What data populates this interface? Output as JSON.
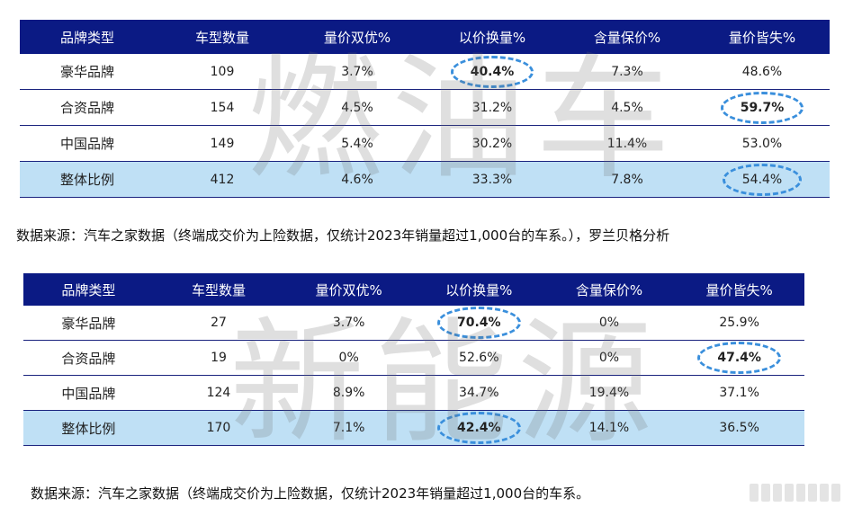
{
  "headers": [
    "品牌类型",
    "车型数量",
    "量价双优%",
    "以价换量%",
    "含量保价%",
    "量价皆失%"
  ],
  "ice": {
    "watermark": "燃油车",
    "rows": [
      {
        "brand": "豪华品牌",
        "count": "109",
        "both_good": "3.7%",
        "price_for_volume": "40.4%",
        "volume_hold": "7.3%",
        "both_loss": "48.6%"
      },
      {
        "brand": "合资品牌",
        "count": "154",
        "both_good": "4.5%",
        "price_for_volume": "31.2%",
        "volume_hold": "4.5%",
        "both_loss": "59.7%"
      },
      {
        "brand": "中国品牌",
        "count": "149",
        "both_good": "5.4%",
        "price_for_volume": "30.2%",
        "volume_hold": "11.4%",
        "both_loss": "53.0%"
      },
      {
        "brand": "整体比例",
        "count": "412",
        "both_good": "4.6%",
        "price_for_volume": "33.3%",
        "volume_hold": "7.8%",
        "both_loss": "54.4%"
      }
    ],
    "source": "数据来源：汽车之家数据（终端成交价为上险数据，仅统计2023年销量超过1,000台的车系。），罗兰贝格分析"
  },
  "nev": {
    "watermark": "新能源",
    "rows": [
      {
        "brand": "豪华品牌",
        "count": "27",
        "both_good": "3.7%",
        "price_for_volume": "70.4%",
        "volume_hold": "0%",
        "both_loss": "25.9%"
      },
      {
        "brand": "合资品牌",
        "count": "19",
        "both_good": "0%",
        "price_for_volume": "52.6%",
        "volume_hold": "0%",
        "both_loss": "47.4%"
      },
      {
        "brand": "中国品牌",
        "count": "124",
        "both_good": "8.9%",
        "price_for_volume": "34.7%",
        "volume_hold": "19.4%",
        "both_loss": "37.1%"
      },
      {
        "brand": "整体比例",
        "count": "170",
        "both_good": "7.1%",
        "price_for_volume": "42.4%",
        "volume_hold": "14.1%",
        "both_loss": "36.5%"
      }
    ],
    "source": "数据来源：汽车之家数据（终端成交价为上险数据，仅统计2023年销量超过1,000台的车系。"
  }
}
